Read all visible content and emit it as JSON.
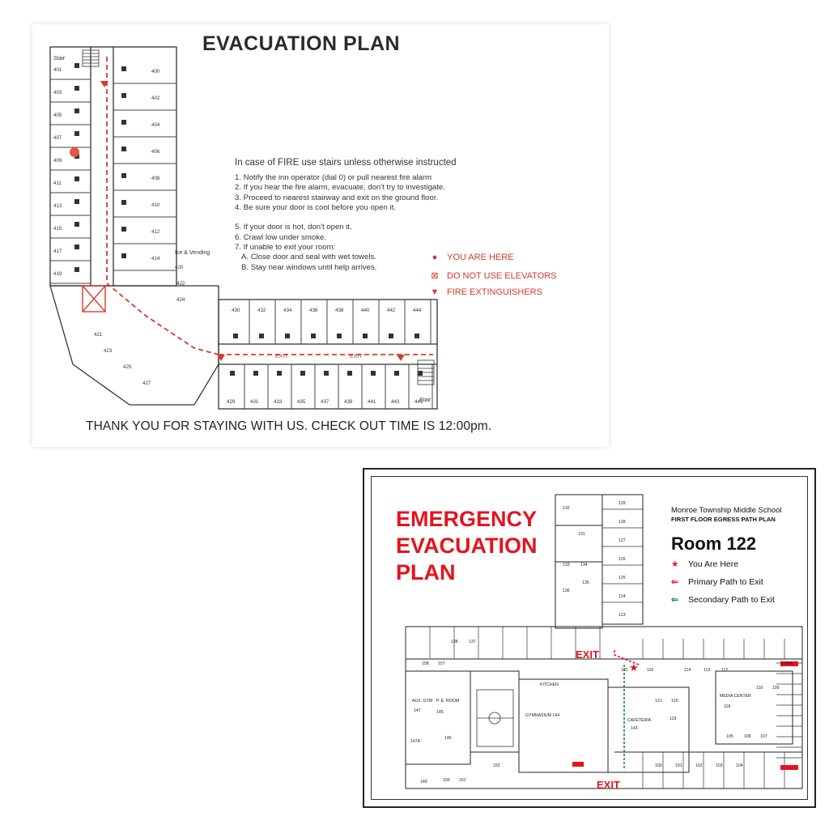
{
  "hotel": {
    "title": "EVACUATION PLAN",
    "instructions_heading": "In case of FIRE use stairs unless otherwise instructed",
    "instructions": [
      "1. Notify the inn operator (dial 0) or pull nearest fire alarm",
      "2. If you hear the fire alarm, evacuate, don't try to investigate.",
      "3. Proceed to nearest stairway and exit on the ground floor.",
      "4. Be sure your door is cool before you open it.",
      "",
      "5. If your door is hot, don't open it.",
      "6. Crawl low under smoke.",
      "7. If unable to exit your room:",
      "   A. Close door and seal with wet towels.",
      "   B. Stay near windows until help arrives."
    ],
    "legend": [
      {
        "icon": "red-dot-icon",
        "label": "YOU ARE HERE"
      },
      {
        "icon": "elevator-x-icon",
        "label": "DO NOT USE ELEVATORS"
      },
      {
        "icon": "triangle-down-icon",
        "label": "FIRE EXTINGUISHERS"
      }
    ],
    "footer": "THANK YOU FOR STAYING WITH US. CHECK OUT TIME IS 12:00pm.",
    "labels": {
      "stair_top": "Stair",
      "stair_bottom": "Stair",
      "ice_vending": "Ice & Vending",
      "exit": "EXIT"
    },
    "left_rooms": [
      "401",
      "403",
      "405",
      "407",
      "409",
      "411",
      "413",
      "415",
      "417",
      "419"
    ],
    "right_rooms": [
      "400",
      "402",
      "404",
      "406",
      "408",
      "410",
      "412",
      "414"
    ],
    "corner_rooms": [
      "420",
      "422",
      "424",
      "421",
      "423",
      "425",
      "427"
    ],
    "top_wing_rooms": [
      "430",
      "432",
      "434",
      "436",
      "438",
      "440",
      "442",
      "444"
    ],
    "bottom_wing_rooms": [
      "429",
      "431",
      "433",
      "435",
      "437",
      "439",
      "441",
      "443",
      "445"
    ],
    "accent_color": "#d23b2a"
  },
  "school": {
    "title_lines": [
      "EMERGENCY",
      "EVACUATION",
      "PLAN"
    ],
    "school_name": "Monroe Township Middle School",
    "subtitle": "FIRST FLOOR EGRESS PATH PLAN",
    "room": "Room 122",
    "legend": [
      {
        "icon": "red-star-icon",
        "label": "You Are Here"
      },
      {
        "icon": "red-arrow-icon",
        "label": "Primary Path to Exit"
      },
      {
        "icon": "green-arrow-icon",
        "label": "Secondary Path to Exit"
      }
    ],
    "exit_labels": [
      "EXIT",
      "EXIT"
    ],
    "room_labels": {
      "r132": "132",
      "r129": "129",
      "r131": "131",
      "r128": "128",
      "r127": "127",
      "r126": "126",
      "r133": "133",
      "r134": "134",
      "r135": "135",
      "r125": "125",
      "r136": "136",
      "r124": "124",
      "r123": "123",
      "r138": "138",
      "r137": "137",
      "r158": "158",
      "r157": "157",
      "r122": "122",
      "r116": "116",
      "r114": "114",
      "r113": "113",
      "r112": "112",
      "r147": "147",
      "r145": "145",
      "r144": "GYMNASIUM 144",
      "r143": "143",
      "r119": "119",
      "r121": "121",
      "r120": "120",
      "r118": "118",
      "r110": "110",
      "r109": "109",
      "r105": "105",
      "r106": "106",
      "r107": "107",
      "r101": "101",
      "r102": "102",
      "r103": "103",
      "r104": "104",
      "r100": "100",
      "r152": "152",
      "r150": "150",
      "r151": "151",
      "r149": "149",
      "r146": "146",
      "r147a": "147A",
      "kitchen": "KITCHEN",
      "cafeteria": "CAFETERIA",
      "aux_gym": "AUX. GYM",
      "pe_room": "P. E. ROOM",
      "media": "MEDIA CENTER",
      "stair": "STAIR"
    },
    "primary_color": "#e3141e",
    "secondary_color": "#1a8a2e"
  }
}
